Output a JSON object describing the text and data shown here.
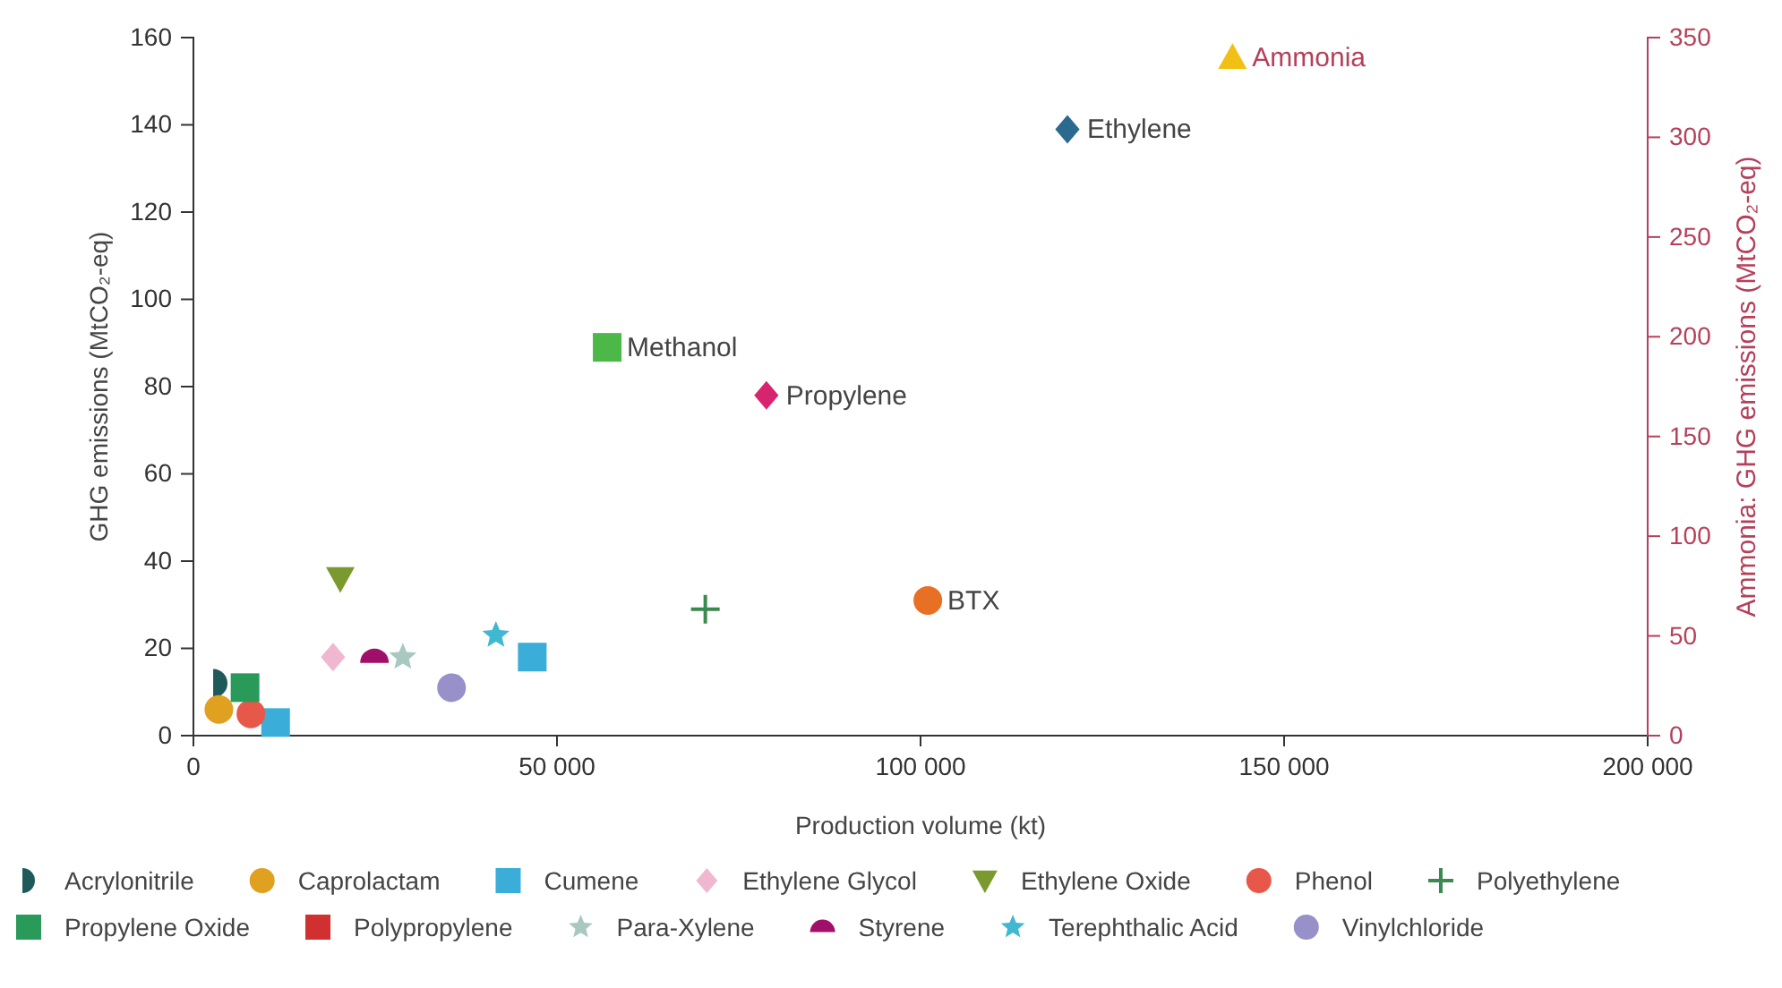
{
  "chart_data": {
    "type": "scatter",
    "xlabel": "Production volume (kt)",
    "ylabel": "GHG emissions (MtCO₂-eq)",
    "y2label": "Ammonia: GHG emissions (MtCO₂-eq)",
    "xlim": [
      0,
      200000
    ],
    "xticks": [
      0,
      {
        "value": 50000,
        "label": "50 000"
      },
      {
        "value": 100000,
        "label": "100 000"
      },
      {
        "value": 150000,
        "label": "150 000"
      },
      {
        "value": 200000,
        "label": "200 000"
      }
    ],
    "ylim": [
      0,
      160
    ],
    "yticks": [
      0,
      20,
      40,
      60,
      80,
      100,
      120,
      140,
      160
    ],
    "y2lim": [
      0,
      350
    ],
    "y2ticks": [
      0,
      50,
      100,
      150,
      200,
      250,
      300,
      350
    ],
    "grid": false,
    "legend": "bottom",
    "annotations": [
      {
        "text": "Ethylene",
        "x": 120200,
        "y": 139
      },
      {
        "text": "Methanol",
        "x": 56900,
        "y": 89
      },
      {
        "text": "Propylene",
        "x": 78800,
        "y": 78
      },
      {
        "text": "BTX",
        "x": 101000,
        "y": 31
      }
    ],
    "series": [
      {
        "name": "Ammonia",
        "color": "#f2c014",
        "marker": "triangle",
        "axis": "y2",
        "x": [
          142900
        ],
        "values": [
          340
        ]
      },
      {
        "color": "#2a6a8f",
        "marker": "diamond",
        "x": [
          120200
        ],
        "values": [
          139
        ]
      },
      {
        "color": "#4cb848",
        "marker": "square",
        "x": [
          56900
        ],
        "values": [
          89
        ]
      },
      {
        "color": "#d6246e",
        "marker": "diamond",
        "x": [
          78800
        ],
        "values": [
          78
        ]
      },
      {
        "color": "#e87024",
        "marker": "circle",
        "x": [
          101000
        ],
        "values": [
          31
        ]
      },
      {
        "name": "Acrylonitrile",
        "color": "#1f5a5a",
        "marker": "half-circle-right",
        "x": [
          3700
        ],
        "values": [
          12
        ]
      },
      {
        "name": "Caprolactam",
        "color": "#e0a020",
        "marker": "circle",
        "x": [
          3500
        ],
        "values": [
          6
        ]
      },
      {
        "name": "Cumene",
        "color": "#3aaed8",
        "marker": "square",
        "x": [
          11300,
          46600
        ],
        "values": [
          3,
          18
        ]
      },
      {
        "name": "Ethylene Glycol",
        "color": "#f0b8d0",
        "marker": "diamond",
        "x": [
          19200
        ],
        "values": [
          18
        ]
      },
      {
        "name": "Ethylene Oxide",
        "color": "#7a9a30",
        "marker": "triangle-down",
        "x": [
          20200
        ],
        "values": [
          36
        ]
      },
      {
        "name": "Phenol",
        "color": "#e8584a",
        "marker": "circle",
        "x": [
          7900
        ],
        "values": [
          5
        ]
      },
      {
        "name": "Polyethylene",
        "color": "#3a8a50",
        "marker": "cross",
        "x": [
          70400
        ],
        "values": [
          29
        ]
      },
      {
        "name": "Propylene Oxide",
        "color": "#2a9a5a",
        "marker": "square",
        "x": [
          7100
        ],
        "values": [
          11
        ]
      },
      {
        "name": "Polypropylene",
        "color": "#d03030",
        "marker": "square",
        "x": [
          null
        ],
        "values": [
          null
        ]
      },
      {
        "name": "Para-Xylene",
        "color": "#a8c8c0",
        "marker": "star",
        "x": [
          28800
        ],
        "values": [
          18
        ]
      },
      {
        "name": "Styrene",
        "color": "#a0106a",
        "marker": "half-circle-top",
        "x": [
          24900
        ],
        "values": [
          18
        ]
      },
      {
        "name": "Terephthalic Acid",
        "color": "#40b8d0",
        "marker": "star",
        "x": [
          41600
        ],
        "values": [
          23
        ]
      },
      {
        "name": "Vinylchloride",
        "color": "#9890c8",
        "marker": "circle",
        "x": [
          35500
        ],
        "values": [
          11
        ]
      }
    ]
  }
}
